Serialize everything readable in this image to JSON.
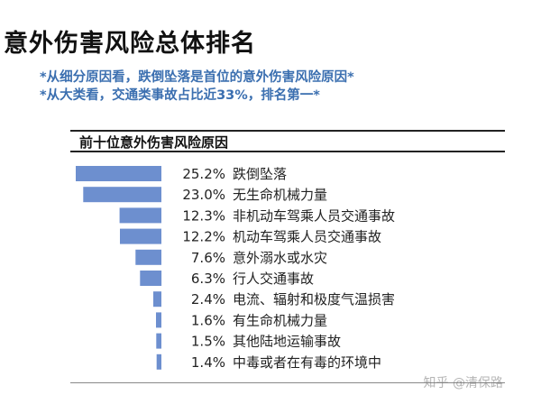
{
  "header": {
    "title": "意外伤害风险总体排名",
    "notes": [
      "*从细分原因看，跌倒坠落是首位的意外伤害风险原因*",
      "*从大类看，交通类事故占比近33%，排名第一*"
    ]
  },
  "watermark": "知乎 @清保路",
  "chart_data": {
    "type": "bar",
    "orientation": "horizontal",
    "title": "前十位意外伤害风险原因",
    "bar_color": "#6d8fcf",
    "categories": [
      "跌倒坠落",
      "无生命机械力量",
      "非机动车驾乘人员交通事故",
      "机动车驾乘人员交通事故",
      "意外溺水或水灾",
      "行人交通事故",
      "电流、辐射和极度气温损害",
      "有生命机械力量",
      "其他陆地运输事故",
      "中毒或者在有毒的环境中"
    ],
    "values": [
      25.2,
      23.0,
      12.3,
      12.2,
      7.6,
      6.3,
      2.4,
      1.6,
      1.5,
      1.4
    ],
    "value_labels": [
      "25.2%",
      "23.0%",
      "12.3%",
      "12.2%",
      "7.6%",
      "6.3%",
      "2.4%",
      "1.6%",
      "1.5%",
      "1.4%"
    ],
    "unit": "%",
    "xlim": [
      0,
      25.2
    ]
  }
}
